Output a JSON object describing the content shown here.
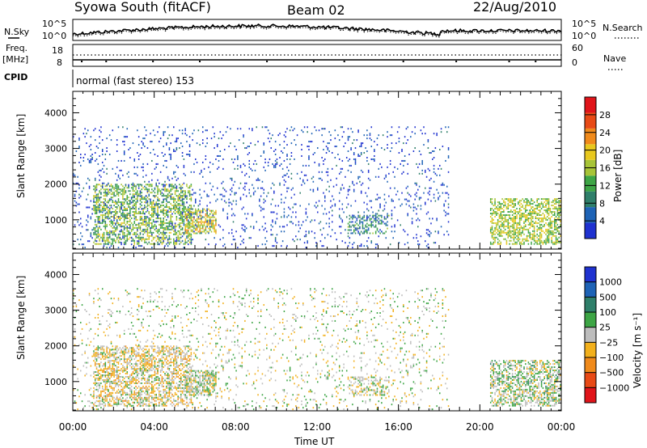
{
  "header": {
    "station": "Syowa South (fitACF)",
    "beam": "Beam 02",
    "date": "22/Aug/2010"
  },
  "summary": {
    "nsky_label": "N.Sky",
    "nsky_ticks": [
      "10^5",
      "10^0"
    ],
    "nsearch_label": "N.Search",
    "nsearch_ticks": [
      "10^5",
      "10^0"
    ],
    "freq_label": "Freq.",
    "freq_unit": "[MHz]",
    "freq_ticks": [
      "18",
      "8"
    ],
    "nave_label": "Nave",
    "nave_ticks": [
      "60",
      "0"
    ],
    "cpid_label": "CPID",
    "cpid_text": "normal (fast stereo) 153"
  },
  "colors": {
    "power": [
      "#1f32d0",
      "#1e63b6",
      "#2f7f6a",
      "#3da545",
      "#a7c437",
      "#e8c81e",
      "#f08a1b",
      "#e84a16",
      "#e0141a"
    ],
    "velocity": [
      "#e0141a",
      "#e84a16",
      "#f08a1b",
      "#f2b01c",
      "#bdbdbd",
      "#3da545",
      "#2f7f6a",
      "#1e63b6",
      "#1f32d0"
    ]
  },
  "chart_data": [
    {
      "type": "heatmap",
      "name": "power-panel",
      "ylabel": "Slant Range [km]",
      "yticks": [
        1000,
        2000,
        3000,
        4000
      ],
      "ylim": [
        180,
        4600
      ],
      "xlim_hours": [
        0,
        24
      ],
      "colorbar": {
        "title": "Power [dB]",
        "ticks": [
          "4",
          "8",
          "12",
          "16",
          "20",
          "24",
          "28"
        ],
        "range": [
          0,
          32
        ]
      },
      "regions": [
        {
          "t0": 1.0,
          "t1": 5.8,
          "r0": 300,
          "r1": 2000,
          "value": 14,
          "density": 0.5
        },
        {
          "t0": 5.5,
          "t1": 7.0,
          "r0": 600,
          "r1": 1300,
          "value": 18,
          "density": 0.6
        },
        {
          "t0": 20.5,
          "t1": 24.0,
          "r0": 300,
          "r1": 1600,
          "value": 16,
          "density": 0.55
        },
        {
          "t0": 13.5,
          "t1": 15.5,
          "r0": 600,
          "r1": 1100,
          "value": 10,
          "density": 0.4
        },
        {
          "t0": 0.0,
          "t1": 18.5,
          "r0": 200,
          "r1": 3600,
          "value": 3,
          "density": 0.08
        }
      ]
    },
    {
      "type": "heatmap",
      "name": "velocity-panel",
      "ylabel": "Slant Range [km]",
      "yticks": [
        1000,
        2000,
        3000,
        4000
      ],
      "ylim": [
        180,
        4600
      ],
      "xlim_hours": [
        0,
        24
      ],
      "colorbar": {
        "title": "Velocity [m s⁻¹]",
        "ticks": [
          "−1000",
          "−500",
          "−100",
          "−25",
          "25",
          "100",
          "500",
          "1000"
        ],
        "range": [
          -1200,
          1200
        ]
      },
      "regions": [
        {
          "t0": 1.0,
          "t1": 5.8,
          "r0": 300,
          "r1": 2000,
          "value": -120,
          "density": 0.5
        },
        {
          "t0": 5.5,
          "t1": 7.0,
          "r0": 600,
          "r1": 1300,
          "value": 60,
          "density": 0.6
        },
        {
          "t0": 20.5,
          "t1": 24.0,
          "r0": 300,
          "r1": 1600,
          "value": 80,
          "density": 0.55
        },
        {
          "t0": 13.5,
          "t1": 15.5,
          "r0": 600,
          "r1": 1100,
          "value": 40,
          "density": 0.4
        },
        {
          "t0": 0.0,
          "t1": 18.5,
          "r0": 200,
          "r1": 3600,
          "value": 0,
          "density": 0.08
        }
      ]
    }
  ],
  "xaxis": {
    "ticks": [
      "00:00",
      "04:00",
      "08:00",
      "12:00",
      "16:00",
      "20:00",
      "00:00"
    ],
    "label": "Time UT"
  }
}
